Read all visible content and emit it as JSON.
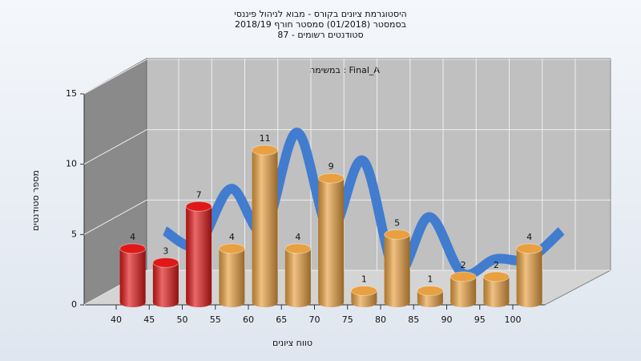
{
  "chart_data": {
    "type": "bar",
    "title": "היסטוגרמת ציונים בקורס - מבוא לניהול פיננסי",
    "subtitle": "בסמסטר  (01/2018)  סמסטר חורף 2018/19",
    "subtitle2": "סטודנטים רשומים - 87",
    "annotation": "במשימה : Final_A",
    "x_label": "טווח ציונים",
    "y_label": "מספר סטודנטים",
    "categories": [
      "40",
      "45",
      "50",
      "55",
      "60",
      "65",
      "70",
      "75",
      "80",
      "85",
      "90",
      "95",
      "100"
    ],
    "values": [
      4,
      3,
      7,
      4,
      11,
      4,
      9,
      1,
      5,
      1,
      2,
      2,
      4
    ],
    "colors": [
      "#e01818",
      "#e01818",
      "#e01818",
      "#e8a040",
      "#e8a040",
      "#e8a040",
      "#e8a040",
      "#e8a040",
      "#e8a040",
      "#e8a040",
      "#e8a040",
      "#e8a040",
      "#e8a040"
    ],
    "trend_color": "#3a78d0",
    "ylim": [
      0,
      15
    ],
    "yticks": [
      0,
      5,
      10,
      15
    ],
    "grid": true
  }
}
